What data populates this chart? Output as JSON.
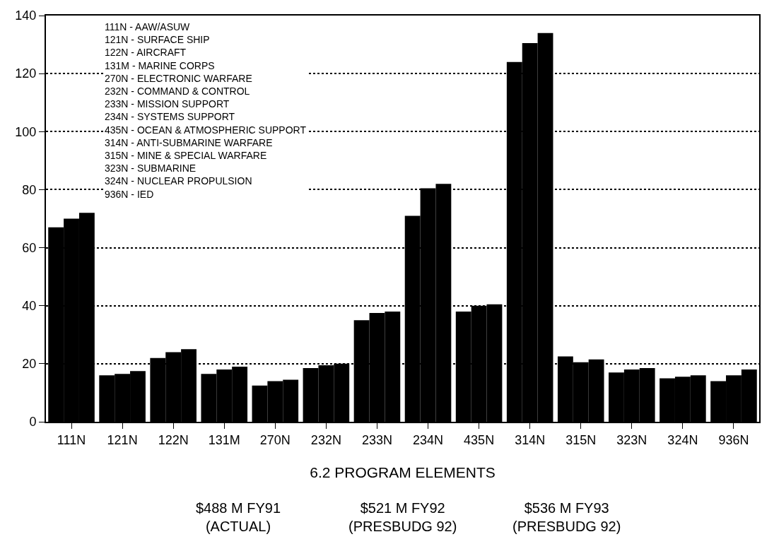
{
  "chart_data": {
    "type": "bar",
    "categories": [
      "111N",
      "121N",
      "122N",
      "131M",
      "270N",
      "232N",
      "233N",
      "234N",
      "435N",
      "314N",
      "315N",
      "323N",
      "324N",
      "936N"
    ],
    "series": [
      {
        "color": "#000000",
        "values": [
          67,
          16,
          22,
          16.5,
          12.5,
          18.5,
          35,
          71,
          38,
          124,
          22.5,
          17,
          15,
          14
        ]
      },
      {
        "color": "#000000",
        "values": [
          70,
          16.5,
          24,
          18,
          14,
          19.5,
          37.5,
          80.5,
          40,
          130.5,
          20.5,
          18,
          15.5,
          16
        ]
      },
      {
        "color": "#000000",
        "values": [
          72,
          17.5,
          25,
          19,
          14.5,
          20,
          38,
          82,
          40.5,
          134,
          21.5,
          18.5,
          16,
          18
        ]
      }
    ],
    "xlabel": "6.2 PROGRAM ELEMENTS",
    "ylim": [
      0,
      140
    ],
    "yticks": [
      0,
      20,
      40,
      60,
      80,
      100,
      120,
      140
    ],
    "grid": "y",
    "legend": false,
    "annotations": [
      "111N - AAW/ASUW\n121N - SURFACE SHIP\n122N - AIRCRAFT\n131M - MARINE CORPS\n270N - ELECTRONIC WARFARE\n232N - COMMAND & CONTROL\n233N - MISSION SUPPORT\n234N - SYSTEMS SUPPORT\n435N - OCEAN & ATMOSPHERIC SUPPORT\n314N - ANTI-SUBMARINE WARFARE\n315N - MINE & SPECIAL WARFARE\n323N - SUBMARINE\n324N - NUCLEAR PROPULSION\n936N - IED",
      "$488 M FY91\n(ACTUAL)",
      "$521 M FY92\n(PRESBUDG 92)",
      "$536 M FY93\n(PRESBUDG 92)"
    ]
  }
}
